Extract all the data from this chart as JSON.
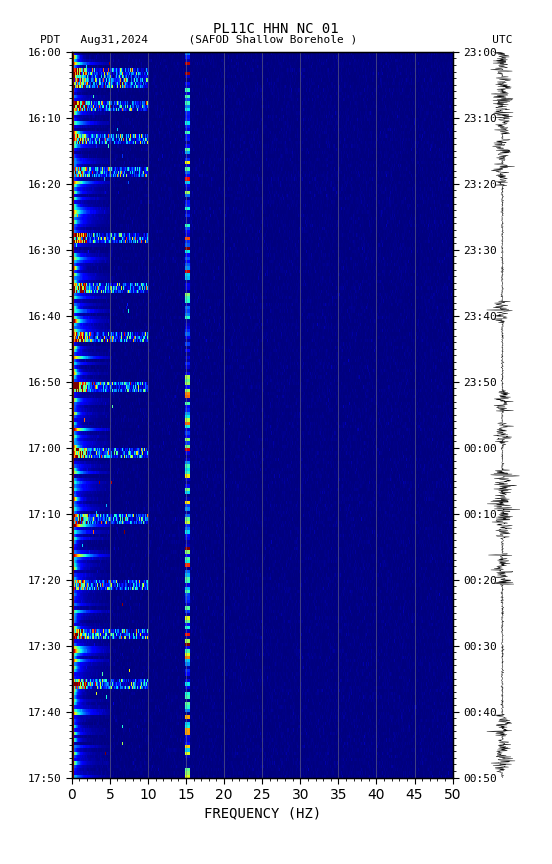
{
  "title_line1": "PL11C HHN NC 01",
  "title_line2": "PDT   Aug31,2024      (SAFOD Shallow Borehole )                    UTC",
  "xlabel": "FREQUENCY (HZ)",
  "freq_min": 0,
  "freq_max": 50,
  "ytick_pdt": [
    "16:00",
    "16:10",
    "16:20",
    "16:30",
    "16:40",
    "16:50",
    "17:00",
    "17:10",
    "17:20",
    "17:30",
    "17:40",
    "17:50"
  ],
  "ytick_utc": [
    "23:00",
    "23:10",
    "23:20",
    "23:30",
    "23:40",
    "23:50",
    "00:00",
    "00:10",
    "00:20",
    "00:30",
    "00:40",
    "00:50"
  ],
  "freq_gridlines": [
    5,
    10,
    15,
    20,
    25,
    30,
    35,
    40,
    45
  ],
  "fig_width": 5.52,
  "fig_height": 8.64,
  "dpi": 100
}
